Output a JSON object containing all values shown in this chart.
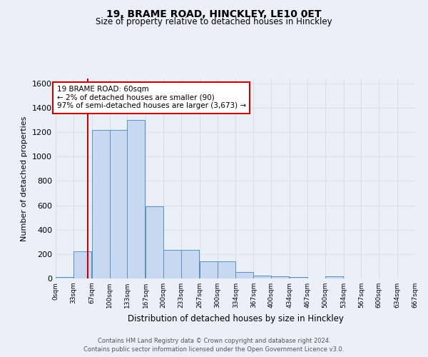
{
  "title1": "19, BRAME ROAD, HINCKLEY, LE10 0ET",
  "title2": "Size of property relative to detached houses in Hinckley",
  "xlabel": "Distribution of detached houses by size in Hinckley",
  "ylabel": "Number of detached properties",
  "bin_labels": [
    "0sqm",
    "33sqm",
    "67sqm",
    "100sqm",
    "133sqm",
    "167sqm",
    "200sqm",
    "233sqm",
    "267sqm",
    "300sqm",
    "334sqm",
    "367sqm",
    "400sqm",
    "434sqm",
    "467sqm",
    "500sqm",
    "534sqm",
    "567sqm",
    "600sqm",
    "634sqm",
    "667sqm"
  ],
  "bin_edges": [
    0,
    33,
    67,
    100,
    133,
    167,
    200,
    233,
    267,
    300,
    334,
    367,
    400,
    434,
    467,
    500,
    534,
    567,
    600,
    634,
    667
  ],
  "bar_heights": [
    10,
    220,
    1220,
    1220,
    1300,
    590,
    235,
    235,
    140,
    140,
    50,
    25,
    20,
    10,
    0,
    15,
    0,
    0,
    0,
    0,
    0
  ],
  "bar_color": "#c8d8f0",
  "bar_edge_color": "#5a8fc0",
  "vline_x": 60,
  "vline_color": "#cc0000",
  "annotation_line1": "19 BRAME ROAD: 60sqm",
  "annotation_line2": "← 2% of detached houses are smaller (90)",
  "annotation_line3": "97% of semi-detached houses are larger (3,673) →",
  "annotation_box_color": "#ffffff",
  "annotation_box_edge": "#cc0000",
  "ylim": [
    0,
    1640
  ],
  "yticks": [
    0,
    200,
    400,
    600,
    800,
    1000,
    1200,
    1400,
    1600
  ],
  "background_color": "#eaf0f8",
  "grid_color": "#d8dfe8",
  "footer_line1": "Contains HM Land Registry data © Crown copyright and database right 2024.",
  "footer_line2": "Contains public sector information licensed under the Open Government Licence v3.0."
}
